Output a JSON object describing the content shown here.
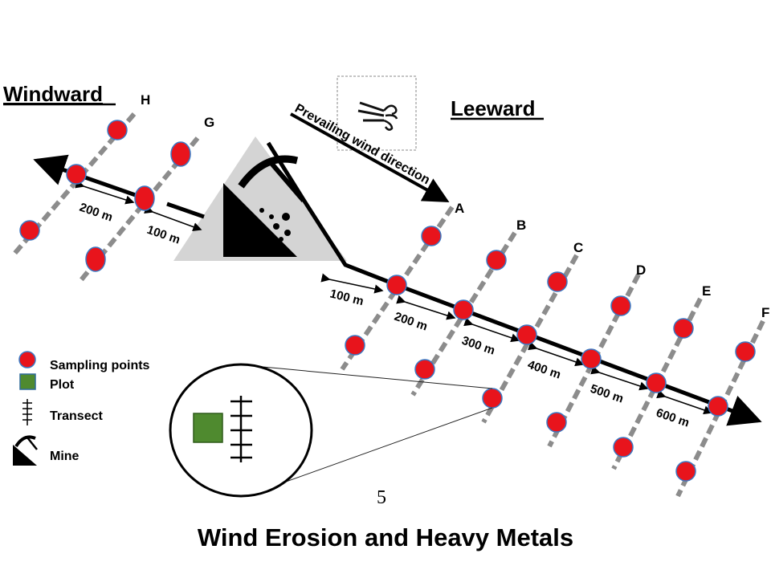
{
  "labels": {
    "windward": "Windward",
    "leeward": "Leeward",
    "prevailing_wind": "Prevailing wind direction",
    "page_number": "5",
    "title": "Wind Erosion and Heavy Metals"
  },
  "transects": [
    "A",
    "B",
    "C",
    "D",
    "E",
    "F",
    "G",
    "H"
  ],
  "distances": {
    "windward": [
      "200 m",
      "100 m"
    ],
    "leeward": [
      "100 m",
      "200 m",
      "300 m",
      "400 m",
      "500 m",
      "600 m"
    ]
  },
  "legend": {
    "sampling_points": "Sampling points",
    "plot": "Plot",
    "transect": "Transect",
    "mine": "Mine"
  },
  "colors": {
    "sampling_point": "#e8141c",
    "sampling_point_stroke": "#3a78c3",
    "transect_line": "#8c8c8c",
    "plot": "#4f8a2f",
    "mine_triangle": "#d4d4d4"
  },
  "icons": [
    "wind-icon",
    "mine-icon"
  ]
}
